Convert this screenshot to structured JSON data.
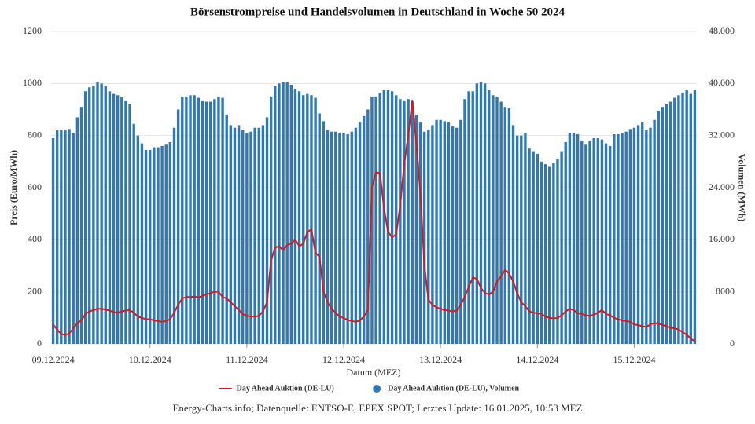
{
  "chart_data": {
    "type": "combo",
    "title": "Börsenstrompreise und Handelsvolumen in Deutschland in Woche 50 2024",
    "xlabel": "Datum (MEZ)",
    "ylabel": "Preis (Euro/MWh)",
    "y2label": "Volumen (MWh)",
    "source": "Energy-Charts.info; Datenquelle: ENTSO-E, EPEX SPOT; Letztes Update: 16.01.2025, 10:53 MEZ",
    "grid": true,
    "legend": "bottom",
    "x": [
      0,
      1,
      2,
      3,
      4,
      5,
      6,
      7,
      8,
      9,
      10,
      11,
      12,
      13,
      14,
      15,
      16,
      17,
      18,
      19,
      20,
      21,
      22,
      23,
      24,
      25,
      26,
      27,
      28,
      29,
      30,
      31,
      32,
      33,
      34,
      35,
      36,
      37,
      38,
      39,
      40,
      41,
      42,
      43,
      44,
      45,
      46,
      47,
      48,
      49,
      50,
      51,
      52,
      53,
      54,
      55,
      56,
      57,
      58,
      59,
      60,
      61,
      62,
      63,
      64,
      65,
      66,
      67,
      68,
      69,
      70,
      71,
      72,
      73,
      74,
      75,
      76,
      77,
      78,
      79,
      80,
      81,
      82,
      83,
      84,
      85,
      86,
      87,
      88,
      89,
      90,
      91,
      92,
      93,
      94,
      95,
      96,
      97,
      98,
      99,
      100,
      101,
      102,
      103,
      104,
      105,
      106,
      107,
      108,
      109,
      110,
      111,
      112,
      113,
      114,
      115,
      116,
      117,
      118,
      119,
      120,
      121,
      122,
      123,
      124,
      125,
      126,
      127,
      128,
      129,
      130,
      131,
      132,
      133,
      134,
      135,
      136,
      137,
      138,
      139,
      140,
      141,
      142,
      143,
      144,
      145,
      146,
      147,
      148,
      149,
      150,
      151,
      152,
      153,
      154,
      155,
      156,
      157,
      158,
      159
    ],
    "xlim": [
      -0.5,
      159.5
    ],
    "xticks": [
      {
        "value": 0,
        "label": "09.12.2024"
      },
      {
        "value": 24,
        "label": "10.12.2024"
      },
      {
        "value": 48,
        "label": "11.12.2024"
      },
      {
        "value": 72,
        "label": "12.12.2024"
      },
      {
        "value": 96,
        "label": "13.12.2024"
      },
      {
        "value": 120,
        "label": "14.12.2024"
      },
      {
        "value": 144,
        "label": "15.12.2024"
      }
    ],
    "ylim": [
      0,
      1200
    ],
    "yticks": [
      0,
      200,
      400,
      600,
      800,
      1000,
      1200
    ],
    "y2lim": [
      0,
      48000
    ],
    "y2ticks": [
      0,
      8000,
      {
        "value": 16000,
        "label": "16.000"
      },
      {
        "value": 24000,
        "label": "24.000"
      },
      {
        "value": 32000,
        "label": "32.000"
      },
      {
        "value": 40000,
        "label": "40.000"
      },
      {
        "value": 48000,
        "label": "48.000"
      }
    ],
    "series": [
      {
        "name": "Day Ahead Auktion (DE-LU)",
        "type": "line",
        "color": "#d7191c",
        "values": [
          75,
          55,
          38,
          35,
          40,
          60,
          80,
          90,
          115,
          125,
          130,
          135,
          135,
          132,
          128,
          122,
          120,
          125,
          128,
          130,
          120,
          105,
          100,
          95,
          95,
          90,
          88,
          85,
          88,
          95,
          120,
          150,
          175,
          180,
          180,
          182,
          178,
          185,
          190,
          195,
          200,
          200,
          180,
          175,
          160,
          145,
          130,
          115,
          108,
          105,
          105,
          108,
          125,
          160,
          320,
          370,
          375,
          360,
          380,
          385,
          400,
          375,
          385,
          430,
          440,
          350,
          335,
          200,
          160,
          135,
          120,
          105,
          100,
          92,
          88,
          85,
          90,
          105,
          130,
          600,
          660,
          655,
          520,
          430,
          410,
          420,
          530,
          690,
          800,
          935,
          770,
          580,
          300,
          170,
          150,
          140,
          135,
          130,
          128,
          125,
          128,
          150,
          180,
          220,
          255,
          250,
          215,
          195,
          190,
          200,
          240,
          260,
          285,
          270,
          240,
          195,
          160,
          145,
          125,
          120,
          118,
          115,
          105,
          100,
          98,
          100,
          110,
          125,
          135,
          130,
          118,
          115,
          110,
          108,
          112,
          120,
          130,
          115,
          110,
          100,
          95,
          90,
          88,
          85,
          75,
          72,
          68,
          65,
          75,
          80,
          78,
          72,
          68,
          62,
          60,
          55,
          45,
          35,
          20,
          10
        ]
      },
      {
        "name": "Day Ahead Auktion (DE-LU), Volumen",
        "type": "bar",
        "axis": "y2",
        "color": "#2f78b4",
        "values": [
          31600,
          32800,
          32800,
          32800,
          33000,
          32400,
          34800,
          36400,
          38800,
          39400,
          39600,
          40200,
          40000,
          39600,
          38800,
          38400,
          38200,
          38000,
          37400,
          36800,
          33800,
          32000,
          30800,
          29800,
          29800,
          30200,
          30200,
          30400,
          30600,
          31000,
          33200,
          36000,
          38000,
          38000,
          38200,
          38200,
          37800,
          37400,
          37200,
          37200,
          37600,
          38000,
          37800,
          35200,
          33600,
          33200,
          33600,
          32800,
          32400,
          32600,
          33200,
          33200,
          33600,
          34800,
          38000,
          39600,
          40000,
          40200,
          40200,
          39800,
          39200,
          38800,
          38200,
          38400,
          38200,
          37800,
          35400,
          34200,
          32800,
          32600,
          32600,
          32400,
          32400,
          32200,
          32600,
          33200,
          34000,
          35000,
          36000,
          38000,
          38000,
          38600,
          39000,
          39000,
          38800,
          38200,
          37600,
          37400,
          37600,
          37200,
          35200,
          34000,
          32600,
          32800,
          33600,
          34400,
          34400,
          34200,
          34000,
          33400,
          33200,
          34400,
          37600,
          38800,
          38800,
          40000,
          40200,
          40000,
          39000,
          38200,
          38000,
          37200,
          36400,
          36200,
          33600,
          32000,
          32000,
          32400,
          30000,
          29600,
          29200,
          28000,
          27600,
          27200,
          27800,
          28400,
          29600,
          31000,
          32400,
          32400,
          32200,
          31200,
          30600,
          31200,
          31600,
          31600,
          31400,
          30800,
          30400,
          32200,
          32200,
          32400,
          32600,
          33000,
          33200,
          33600,
          34000,
          32800,
          33200,
          34400,
          35800,
          36400,
          36800,
          37200,
          37800,
          38200,
          38600,
          39000,
          38400,
          39000
        ]
      }
    ]
  }
}
